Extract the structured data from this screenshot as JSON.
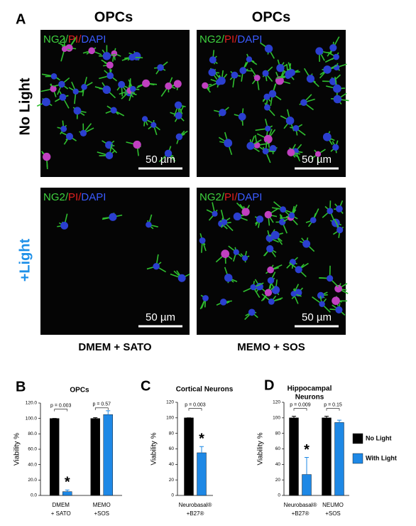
{
  "panel_a": {
    "letter": "A",
    "columns": [
      "OPCs",
      "OPCs"
    ],
    "rows": [
      "No Light",
      "+Light"
    ],
    "footers": [
      "DMEM + SATO",
      "MEMO + SOS"
    ],
    "images": [
      {
        "channels": [
          "NG2",
          "PI",
          "DAPI"
        ],
        "separator": "/",
        "scale": "50 µm"
      },
      {
        "channels": [
          "NG2",
          "PI",
          "DAPI"
        ],
        "separator": "/",
        "scale": "50 µm"
      },
      {
        "channels": [
          "NG2",
          "PI",
          "DAPI"
        ],
        "separator": "/",
        "scale": "50 µm"
      },
      {
        "channels": [
          "NG2",
          "PI",
          "DAPI"
        ],
        "separator": "/",
        "scale": "50 µm"
      }
    ]
  },
  "chart_data": [
    {
      "type": "bar",
      "panel": "B",
      "title": [
        "OPCs"
      ],
      "y_label": "Viability %",
      "categories": [
        [
          "DMEM",
          "+ SATO"
        ],
        [
          "MEMO",
          "+SOS"
        ]
      ],
      "series": [
        {
          "color": "#000000",
          "values": [
            100,
            100
          ],
          "errors": [
            0,
            1
          ]
        },
        {
          "color": "#1e88e5",
          "values": [
            5,
            105
          ],
          "errors": [
            2,
            5
          ]
        }
      ],
      "p_values": [
        "p = 0.003",
        "p = 0.57"
      ],
      "markers": [
        "*",
        null
      ],
      "ylim": [
        0,
        120
      ],
      "yticks": [
        {
          "value": 0,
          "label": "0.0"
        },
        {
          "value": 20,
          "label": "20.0"
        },
        {
          "value": 40,
          "label": "40.0"
        },
        {
          "value": 60,
          "label": "60.0"
        },
        {
          "value": 80,
          "label": "80.0"
        },
        {
          "value": 100,
          "label": "100.0"
        },
        {
          "value": 120,
          "label": "120.0"
        }
      ]
    },
    {
      "type": "bar",
      "panel": "C",
      "title": [
        "Cortical Neurons"
      ],
      "y_label": "Viability %",
      "categories": [
        [
          "Neurobasal®",
          "+B27®"
        ]
      ],
      "series": [
        {
          "color": "#000000",
          "values": [
            100
          ],
          "errors": [
            0
          ]
        },
        {
          "color": "#1e88e5",
          "values": [
            55
          ],
          "errors": [
            8
          ]
        }
      ],
      "p_values": [
        "p = 0.003"
      ],
      "markers": [
        "*"
      ],
      "ylim": [
        0,
        120
      ],
      "yticks": [
        0,
        20,
        40,
        60,
        80,
        100,
        120
      ]
    },
    {
      "type": "bar",
      "panel": "D",
      "title": [
        "Hippocampal",
        "Neurons"
      ],
      "y_label": "Viability %",
      "categories": [
        [
          "Neurobasal®",
          "+B27®"
        ],
        [
          "NEUMO",
          "+SOS"
        ]
      ],
      "series": [
        {
          "name": "No Light",
          "color": "#000000",
          "values": [
            100,
            100
          ],
          "errors": [
            2,
            2
          ]
        },
        {
          "name": "With Light",
          "color": "#1e88e5",
          "values": [
            27,
            94
          ],
          "errors": [
            22,
            3
          ]
        }
      ],
      "p_values": [
        "p = 0.009",
        "p = 0.15"
      ],
      "markers": [
        "*",
        null
      ],
      "ylim": [
        0,
        120
      ],
      "yticks": [
        0,
        20,
        40,
        60,
        80,
        100,
        120
      ],
      "legend": "right"
    }
  ]
}
